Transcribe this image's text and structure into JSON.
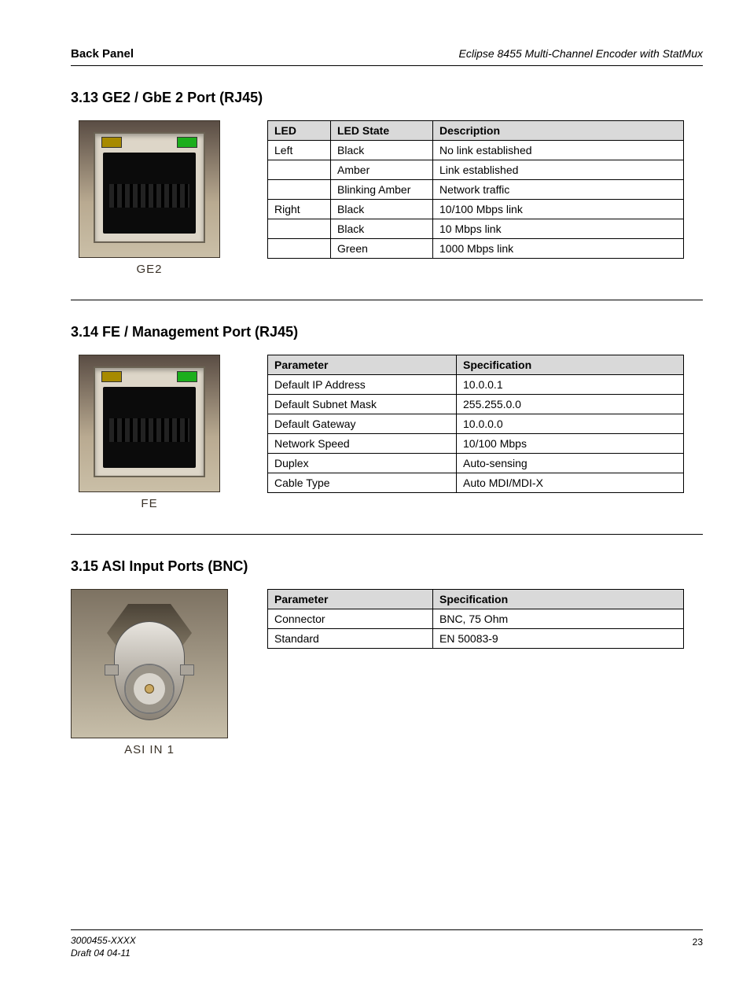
{
  "header": {
    "left": "Back Panel",
    "right": "Eclipse 8455 Multi-Channel Encoder with StatMux"
  },
  "sections": [
    {
      "title": "3.13 GE2  /  GbE 2 Port (RJ45)",
      "caption": "GE2",
      "illus": "rj45",
      "table": {
        "head": [
          "LED",
          "LED State",
          "Description"
        ],
        "colClasses": [
          "col-led",
          "col-state",
          ""
        ],
        "rows": [
          [
            "Left",
            "Black",
            "No link established"
          ],
          [
            "",
            "Amber",
            "Link established"
          ],
          [
            "",
            "Blinking Amber",
            "Network traffic"
          ],
          [
            "Right",
            "Black",
            "10/100 Mbps link"
          ],
          [
            "",
            "Black",
            "10 Mbps link"
          ],
          [
            "",
            "Green",
            "1000 Mbps link"
          ]
        ]
      }
    },
    {
      "title": "3.14 FE  /  Management Port (RJ45)",
      "caption": "FE",
      "illus": "rj45",
      "table": {
        "head": [
          "Parameter",
          "Specification"
        ],
        "colClasses": [
          "col-param",
          ""
        ],
        "rows": [
          [
            "Default IP Address",
            "10.0.0.1"
          ],
          [
            "Default Subnet Mask",
            "255.255.0.0"
          ],
          [
            "Default Gateway",
            "10.0.0.0"
          ],
          [
            "Network Speed",
            "10/100 Mbps"
          ],
          [
            "Duplex",
            "Auto-sensing"
          ],
          [
            "Cable Type",
            "Auto MDI/MDI-X"
          ]
        ]
      }
    },
    {
      "title": "3.15 ASI Input Ports (BNC)",
      "caption": "ASI IN 1",
      "illus": "bnc",
      "table": {
        "head": [
          "Parameter",
          "Specification"
        ],
        "colClasses": [
          "col-param",
          ""
        ],
        "rows": [
          [
            "Connector",
            "BNC, 75 Ohm"
          ],
          [
            "Standard",
            "EN 50083-9"
          ]
        ]
      }
    }
  ],
  "footer": {
    "doc": "3000455-XXXX",
    "ver": "Draft 04 04-11",
    "page": "23"
  }
}
